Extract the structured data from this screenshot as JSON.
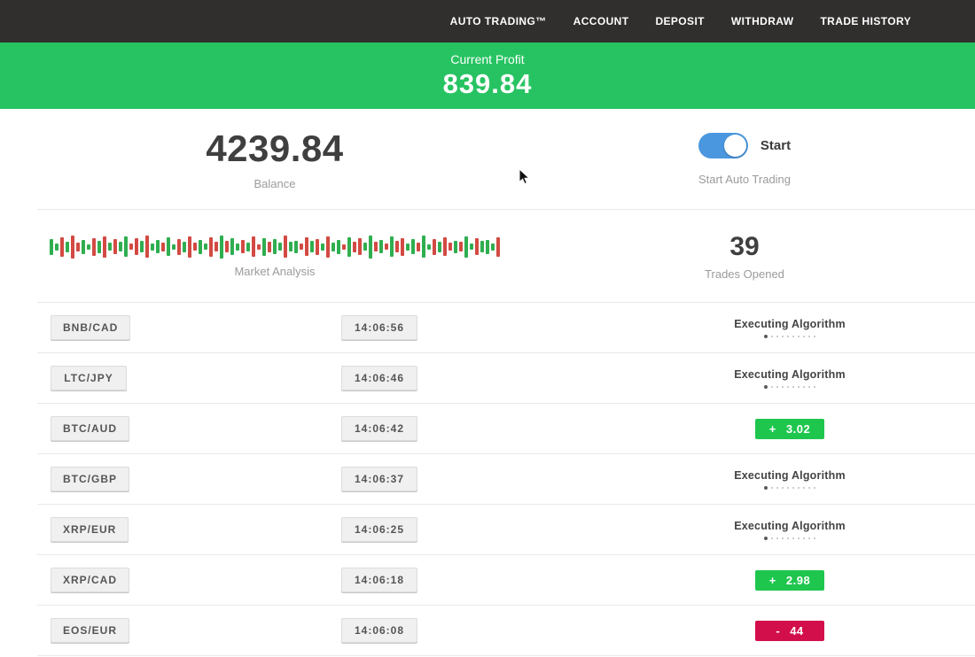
{
  "nav": {
    "items": [
      {
        "label": "AUTO TRADING™"
      },
      {
        "label": "ACCOUNT"
      },
      {
        "label": "DEPOSIT"
      },
      {
        "label": "WITHDRAW"
      },
      {
        "label": "TRADE HISTORY"
      }
    ]
  },
  "banner": {
    "label": "Current Profit",
    "value": "839.84"
  },
  "account": {
    "balance": "4239.84",
    "balance_label": "Balance",
    "toggle_label": "Start",
    "toggle_caption": "Start Auto Trading",
    "toggle_on": true
  },
  "market": {
    "label": "Market Analysis",
    "trades_opened": "39",
    "trades_label": "Trades Opened",
    "bars_heights": [
      18,
      8,
      22,
      12,
      26,
      10,
      16,
      6,
      20,
      14,
      24,
      9,
      17,
      11,
      23,
      7,
      19,
      13,
      25,
      8,
      15,
      10,
      21,
      6,
      18,
      12,
      24,
      9,
      16,
      7,
      22,
      11,
      26,
      13,
      19,
      8,
      15,
      10,
      23,
      6,
      20,
      12,
      17,
      9,
      25,
      11,
      14,
      7,
      21,
      13,
      18,
      8,
      24,
      10,
      16,
      6,
      22,
      12,
      19,
      9,
      26,
      11,
      15,
      7,
      23,
      13,
      20,
      8,
      17,
      10,
      25,
      6,
      18,
      12,
      21,
      9,
      14,
      11,
      24,
      7,
      19,
      13,
      16,
      8,
      22
    ],
    "bars_colors": "ggrgrrggrgrgrggrrgrggrggrgrrggrrgrggrgrrgrggrggrrgrgrggrgrrggrgrgrrggrggrgrrgrggrgggr"
  },
  "trades": [
    {
      "pair": "BNB/CAD",
      "time": "14:06:56",
      "status": "executing",
      "status_label": "Executing Algorithm"
    },
    {
      "pair": "LTC/JPY",
      "time": "14:06:46",
      "status": "executing",
      "status_label": "Executing Algorithm"
    },
    {
      "pair": "BTC/AUD",
      "time": "14:06:42",
      "status": "profit",
      "sign": "+",
      "value": "3.02"
    },
    {
      "pair": "BTC/GBP",
      "time": "14:06:37",
      "status": "executing",
      "status_label": "Executing Algorithm"
    },
    {
      "pair": "XRP/EUR",
      "time": "14:06:25",
      "status": "executing",
      "status_label": "Executing Algorithm"
    },
    {
      "pair": "XRP/CAD",
      "time": "14:06:18",
      "status": "profit",
      "sign": "+",
      "value": "2.98"
    },
    {
      "pair": "EOS/EUR",
      "time": "14:06:08",
      "status": "loss",
      "sign": "-",
      "value": "44"
    }
  ],
  "colors": {
    "nav_bg": "#312f2e",
    "banner_green": "#27c362",
    "badge_green": "#1ec64e",
    "badge_red": "#d30f4b",
    "toggle_blue": "#4a97e0",
    "bar_green": "#2fae4f",
    "bar_red": "#d24a43"
  }
}
